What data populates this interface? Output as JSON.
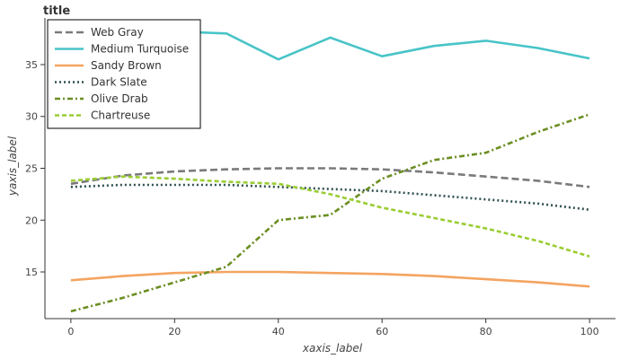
{
  "chart_data": {
    "type": "line",
    "title": "title",
    "xlabel": "xaxis_label",
    "ylabel": "yaxis_label",
    "xlim": [
      -5,
      105
    ],
    "ylim": [
      10.5,
      39.5
    ],
    "xticks": [
      0,
      20,
      40,
      60,
      80,
      100
    ],
    "yticks": [
      15,
      20,
      25,
      30,
      35
    ],
    "legend_position": "top-left",
    "x": [
      0,
      10,
      20,
      30,
      40,
      50,
      60,
      70,
      80,
      90,
      100
    ],
    "series": [
      {
        "name": "Web Gray",
        "color": "#7a7a7a",
        "dash": "8,4",
        "values": [
          23.5,
          24.3,
          24.7,
          24.9,
          25.0,
          25.0,
          24.9,
          24.6,
          24.2,
          23.8,
          23.2
        ]
      },
      {
        "name": "Medium Turquoise",
        "color": "#48c4c8",
        "dash": "",
        "values": [
          35.6,
          37.0,
          38.2,
          38.0,
          35.5,
          37.6,
          35.8,
          36.8,
          37.3,
          36.6,
          35.6
        ]
      },
      {
        "name": "Sandy Brown",
        "color": "#f4a460",
        "dash": "",
        "values": [
          14.2,
          14.6,
          14.9,
          15.0,
          15.0,
          14.9,
          14.8,
          14.6,
          14.3,
          14.0,
          13.6
        ]
      },
      {
        "name": "Dark Slate",
        "color": "#2f4f4f",
        "dash": "2,3",
        "values": [
          23.2,
          23.4,
          23.4,
          23.4,
          23.2,
          23.0,
          22.8,
          22.4,
          22.0,
          21.6,
          21.0
        ]
      },
      {
        "name": "Olive Drab",
        "color": "#6b8e23",
        "dash": "6,3,2,3",
        "values": [
          11.2,
          12.5,
          14.0,
          15.5,
          20.0,
          20.5,
          24.0,
          25.8,
          26.5,
          28.5,
          30.2
        ]
      },
      {
        "name": "Chartreuse",
        "color": "#9acd32",
        "dash": "5,3",
        "values": [
          23.8,
          24.2,
          24.0,
          23.7,
          23.5,
          22.5,
          21.2,
          20.2,
          19.2,
          18.0,
          16.5
        ]
      }
    ]
  }
}
